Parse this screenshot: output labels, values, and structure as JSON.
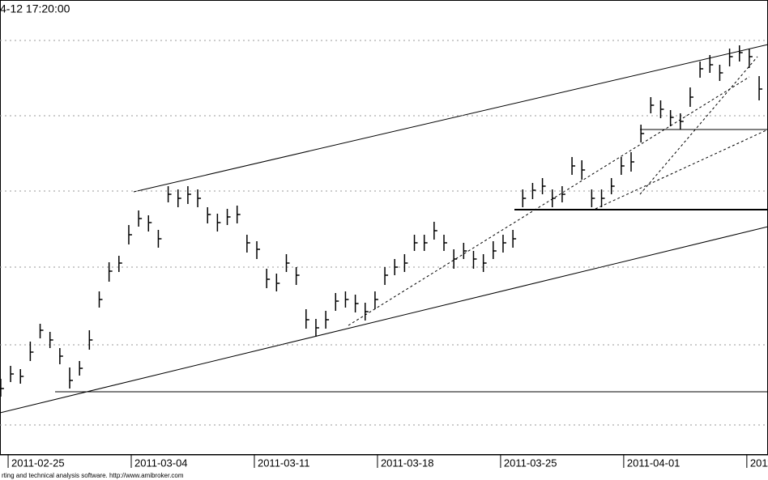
{
  "chart_data": {
    "type": "ohlc",
    "title": "4-12 17:20:00",
    "footer": "rting and technical analysis software. http://www.amibroker.com",
    "xlim": [
      -0.33,
      30.86
    ],
    "ylim": [
      0,
      540
    ],
    "xticks": [
      {
        "value": 0,
        "label": "2011-02-25"
      },
      {
        "value": 5,
        "label": "2011-03-04"
      },
      {
        "value": 10,
        "label": "2011-03-11"
      },
      {
        "value": 15,
        "label": "2011-03-18"
      },
      {
        "value": 20,
        "label": "2011-03-25"
      },
      {
        "value": 25,
        "label": "2011-04-01"
      },
      {
        "value": 30,
        "label": "2011"
      }
    ],
    "ygrid": [
      510,
      417,
      324,
      230,
      134,
      35
    ],
    "color": "#000000",
    "x": [
      -0.3,
      0.1,
      0.5,
      0.9,
      1.3,
      1.7,
      2.1,
      2.5,
      2.9,
      3.3,
      3.7,
      4.1,
      4.5,
      4.9,
      5.3,
      5.7,
      6.1,
      6.5,
      6.9,
      7.3,
      7.7,
      8.1,
      8.5,
      8.9,
      9.3,
      9.7,
      10.1,
      10.5,
      10.9,
      11.3,
      11.7,
      12.1,
      12.5,
      12.9,
      13.3,
      13.7,
      14.1,
      14.5,
      14.9,
      15.3,
      15.7,
      16.1,
      16.5,
      16.9,
      17.3,
      17.7,
      18.1,
      18.5,
      18.9,
      19.3,
      19.7,
      20.1,
      20.5,
      20.9,
      21.3,
      21.7,
      22.1,
      22.5,
      22.9,
      23.3,
      23.7,
      24.1,
      24.5,
      24.9,
      25.3,
      25.7,
      26.1,
      26.5,
      26.9,
      27.3,
      27.7,
      28.1,
      28.5,
      28.9,
      29.3,
      29.7,
      30.1,
      30.5
    ],
    "high": [
      92,
      108,
      104,
      138,
      160,
      150,
      130,
      106,
      114,
      152,
      200,
      236,
      244,
      282,
      300,
      294,
      276,
      330,
      326,
      330,
      326,
      304,
      296,
      302,
      306,
      270,
      262,
      228,
      222,
      246,
      230,
      178,
      166,
      176,
      198,
      200,
      196,
      186,
      200,
      230,
      240,
      246,
      270,
      270,
      286,
      270,
      252,
      260,
      250,
      246,
      262,
      270,
      276,
      326,
      334,
      340,
      326,
      330,
      366,
      362,
      326,
      326,
      340,
      366,
      372,
      406,
      440,
      436,
      424,
      420,
      452,
      484,
      492,
      480,
      500,
      504,
      500,
      466
    ],
    "low": [
      70,
      88,
      86,
      114,
      142,
      130,
      110,
      80,
      96,
      128,
      180,
      212,
      224,
      258,
      280,
      274,
      254,
      310,
      304,
      308,
      304,
      284,
      274,
      282,
      284,
      248,
      240,
      204,
      200,
      224,
      208,
      154,
      144,
      154,
      176,
      180,
      174,
      164,
      178,
      208,
      220,
      224,
      250,
      250,
      264,
      250,
      228,
      240,
      228,
      224,
      240,
      248,
      254,
      304,
      314,
      320,
      304,
      310,
      344,
      338,
      304,
      304,
      320,
      344,
      348,
      384,
      420,
      414,
      404,
      400,
      428,
      464,
      470,
      460,
      478,
      484,
      476,
      436
    ],
    "close": [
      80,
      98,
      95,
      125,
      152,
      140,
      120,
      90,
      105,
      140,
      190,
      225,
      235,
      270,
      290,
      285,
      265,
      320,
      315,
      320,
      315,
      295,
      285,
      292,
      295,
      260,
      252,
      215,
      210,
      235,
      220,
      165,
      155,
      165,
      188,
      190,
      185,
      175,
      190,
      220,
      230,
      235,
      260,
      260,
      275,
      260,
      240,
      250,
      240,
      235,
      250,
      260,
      265,
      315,
      325,
      330,
      315,
      320,
      355,
      350,
      315,
      315,
      330,
      355,
      360,
      395,
      430,
      425,
      415,
      410,
      440,
      475,
      480,
      470,
      490,
      495,
      490,
      450
    ]
  }
}
